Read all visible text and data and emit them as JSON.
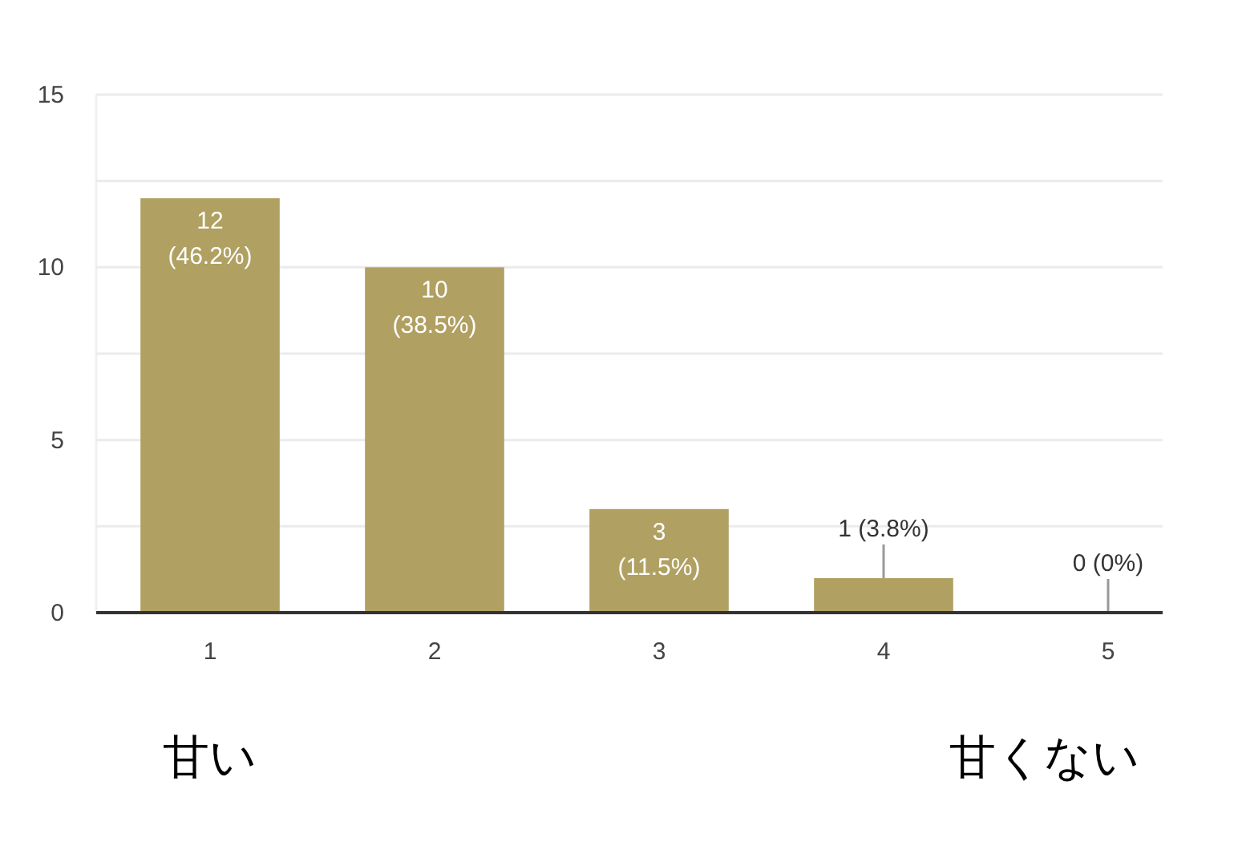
{
  "chart_data": {
    "type": "bar",
    "categories": [
      "1",
      "2",
      "3",
      "4",
      "5"
    ],
    "values": [
      12,
      10,
      3,
      1,
      0
    ],
    "color": "#b0a062",
    "ylim": [
      0,
      15
    ],
    "yticks": [
      0,
      {
        "value": 2.5,
        "label": null
      },
      5,
      {
        "value": 7.5,
        "label": null
      },
      10,
      {
        "value": 12.5,
        "label": null
      },
      15
    ],
    "grid": "y",
    "value_labels": [
      "12 (46.2%)",
      "10 (38.5%)",
      "3 (11.5%)",
      "1 (3.8%)",
      "0 (0%)"
    ],
    "annotations": [
      "甘い",
      "甘くない"
    ]
  }
}
